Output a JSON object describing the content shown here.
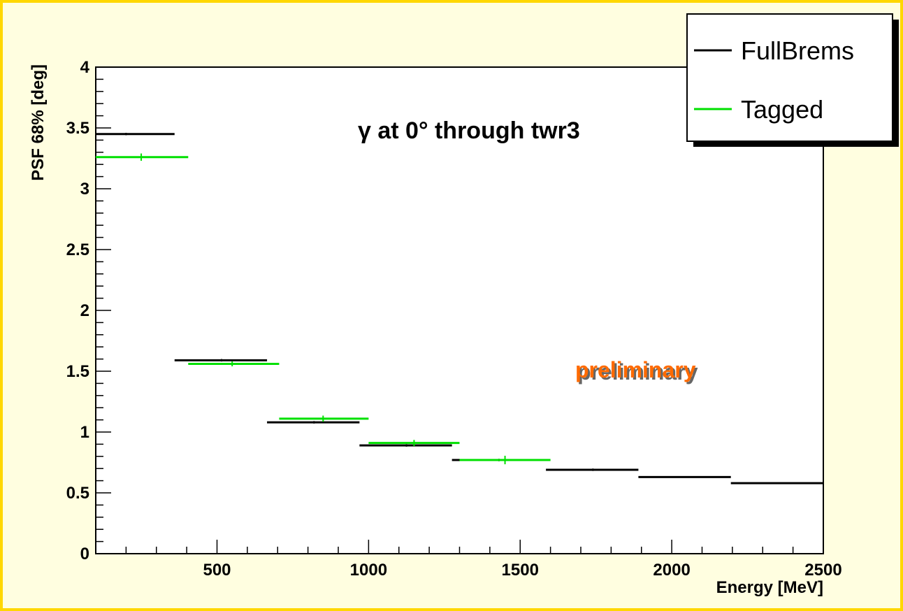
{
  "chart_data": {
    "type": "line",
    "title": "",
    "xlabel": "Energy [MeV]",
    "ylabel": "PSF 68% [deg]",
    "xlim": [
      100,
      2500
    ],
    "ylim": [
      0,
      4
    ],
    "x_ticks": [
      500,
      1000,
      1500,
      2000,
      2500
    ],
    "y_ticks": [
      0,
      0.5,
      1,
      1.5,
      2,
      2.5,
      3,
      3.5,
      4
    ],
    "x_tick_labels": [
      "500",
      "1000",
      "1500",
      "2000",
      "2500"
    ],
    "y_tick_labels": [
      "0",
      "0.5",
      "1",
      "1.5",
      "2",
      "2.5",
      "3",
      "3.5",
      "4"
    ],
    "grid": false,
    "legend": "top-right",
    "annotations": [
      "γ at 0° through twr3",
      "preliminary"
    ],
    "series": [
      {
        "name": "FullBrems",
        "color": "#000000",
        "bins": [
          {
            "x_low": 100,
            "x_high": 360,
            "center": 200,
            "y": 3.45,
            "err": 0.01
          },
          {
            "x_low": 360,
            "x_high": 665,
            "center": 515,
            "y": 1.59,
            "err": 0.01
          },
          {
            "x_low": 665,
            "x_high": 970,
            "center": 820,
            "y": 1.08,
            "err": 0.01
          },
          {
            "x_low": 970,
            "x_high": 1275,
            "center": 1125,
            "y": 0.89,
            "err": 0.01
          },
          {
            "x_low": 1275,
            "x_high": 1585,
            "center": 1430,
            "y": 0.77,
            "err": 0.01
          },
          {
            "x_low": 1585,
            "x_high": 1890,
            "center": 1740,
            "y": 0.69,
            "err": 0.01
          },
          {
            "x_low": 1890,
            "x_high": 2195,
            "center": 2045,
            "y": 0.63,
            "err": 0.005
          },
          {
            "x_low": 2195,
            "x_high": 2500,
            "center": 2350,
            "y": 0.58,
            "err": 0.005
          }
        ]
      },
      {
        "name": "Tagged",
        "color": "#00e000",
        "bins": [
          {
            "x_low": 100,
            "x_high": 405,
            "center": 250,
            "y": 3.26,
            "err": 0.03
          },
          {
            "x_low": 405,
            "x_high": 705,
            "center": 550,
            "y": 1.56,
            "err": 0.02
          },
          {
            "x_low": 705,
            "x_high": 1000,
            "center": 850,
            "y": 1.11,
            "err": 0.025
          },
          {
            "x_low": 1000,
            "x_high": 1300,
            "center": 1150,
            "y": 0.91,
            "err": 0.025
          },
          {
            "x_low": 1300,
            "x_high": 1600,
            "center": 1450,
            "y": 0.77,
            "err": 0.035
          }
        ]
      }
    ]
  }
}
